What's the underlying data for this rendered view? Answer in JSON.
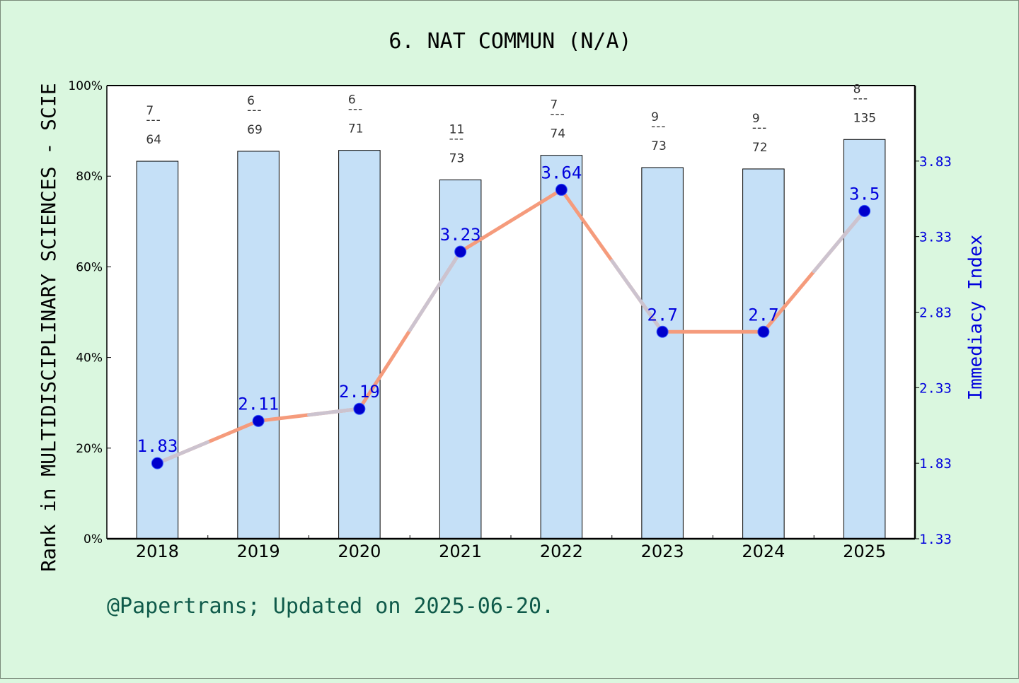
{
  "chart_data": {
    "type": "bar",
    "title": "6. NAT COMMUN (N/A)",
    "ylabel": "Rank in MULTIDISCIPLINARY SCIENCES - SCIE",
    "y2label": "Immediacy Index",
    "ylim": [
      0,
      100
    ],
    "y2lim": [
      1.33,
      4.33
    ],
    "yticks": [
      "0%",
      "20%",
      "40%",
      "60%",
      "80%",
      "100%"
    ],
    "y2ticks": [
      "1.33",
      "1.83",
      "2.33",
      "2.83",
      "3.33",
      "3.83"
    ],
    "categories": [
      "2018",
      "2019",
      "2020",
      "2021",
      "2022",
      "2023",
      "2024",
      "2025"
    ],
    "bar_values": [
      83.3,
      85.5,
      85.7,
      79.2,
      84.6,
      81.9,
      81.6,
      88.1
    ],
    "rank_top": [
      "7",
      "6",
      "6",
      "11",
      "7",
      "9",
      "9",
      "8"
    ],
    "rank_bottom": [
      "64",
      "69",
      "71",
      "73",
      "74",
      "73",
      "72",
      "135"
    ],
    "line_values": [
      1.83,
      2.11,
      2.19,
      3.23,
      3.64,
      2.7,
      2.7,
      3.5
    ],
    "line_labels": [
      "1.83",
      "2.11",
      "2.19",
      "3.23",
      "3.64",
      "2.7",
      "2.7",
      "3.5"
    ],
    "grid": false,
    "colors": {
      "bar": "#c5e0f7",
      "line_up": "#f59b7c",
      "line_down": "#c8c8d8",
      "marker": "#0000cc",
      "right_axis": "#0000dd"
    }
  },
  "footer": "@Papertrans; Updated on 2025-06-20."
}
